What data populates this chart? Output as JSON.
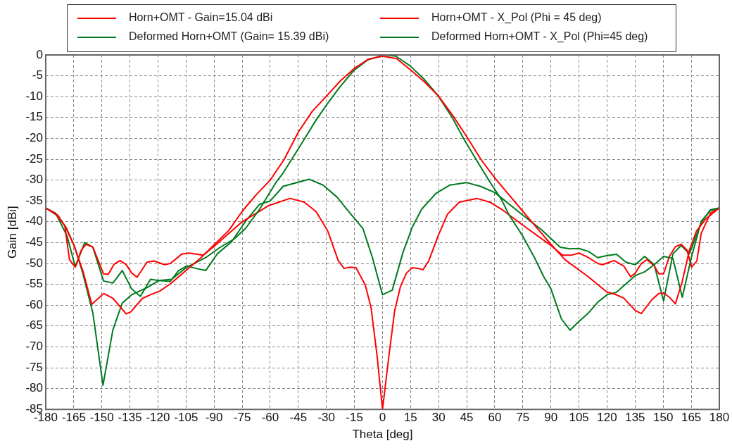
{
  "chart_data": {
    "type": "line",
    "xlabel": "Theta [deg]",
    "ylabel": "Gain [dBi]",
    "xlim": [
      -180,
      180
    ],
    "xticks": [
      -180,
      -165,
      -150,
      -135,
      -120,
      -105,
      -90,
      -75,
      -60,
      -45,
      -30,
      -15,
      0,
      15,
      30,
      45,
      60,
      75,
      90,
      105,
      120,
      135,
      150,
      165,
      180
    ],
    "ylim": [
      -85,
      0
    ],
    "yticks": [
      -85,
      -80,
      -75,
      -70,
      -65,
      -60,
      -55,
      -50,
      -45,
      -40,
      -35,
      -30,
      -25,
      -20,
      -15,
      -10,
      -5,
      0
    ],
    "grid": true,
    "legend": "top",
    "marker": "none",
    "line_style": "solid",
    "series": [
      {
        "name": "Horn+OMT - Gain=15.04 dBi",
        "color": "#ff0000",
        "x": [
          -180,
          -175,
          -170,
          -165,
          -160,
          -155.4,
          -149,
          -144,
          -137,
          -134.5,
          -128.4,
          -124,
          -119,
          -113.4,
          -105.8,
          -97,
          -90,
          -82,
          -75,
          -67.5,
          -60,
          -52.5,
          -45,
          -37.5,
          -30,
          -22.5,
          -15,
          -7.5,
          0,
          7.5,
          15,
          22.5,
          30,
          37.5,
          45,
          52.5,
          60,
          67.5,
          75,
          82.5,
          90,
          97.5,
          110,
          120,
          123.8,
          128.9,
          135.1,
          138.3,
          143.9,
          147.7,
          150.2,
          153.3,
          156.5,
          160.2,
          164,
          167.8,
          172.8,
          180
        ],
        "values": [
          -36.7,
          -38,
          -40.8,
          -45.5,
          -52,
          -59.8,
          -57.2,
          -58.4,
          -62.1,
          -61.6,
          -58.4,
          -57.5,
          -56.6,
          -54.9,
          -52,
          -48.6,
          -45.5,
          -42,
          -37.5,
          -33.5,
          -30,
          -25,
          -18.5,
          -13.5,
          -9.9,
          -6.2,
          -3.2,
          -1,
          -0.3,
          -0.9,
          -3.6,
          -6.5,
          -9.9,
          -14.5,
          -19.6,
          -25,
          -29.5,
          -33.5,
          -37.5,
          -41.5,
          -45.4,
          -49.1,
          -53.2,
          -56.9,
          -57.3,
          -58.3,
          -61.3,
          -62,
          -58.7,
          -57.2,
          -57.1,
          -58.1,
          -59.7,
          -54.3,
          -46.8,
          -42.2,
          -39.3,
          -36.7
        ]
      },
      {
        "name": "Deformed Horn+OMT (Gain= 15.39 dBi)",
        "color": "#007a1f",
        "x": [
          -180,
          -174.9,
          -169.2,
          -164.8,
          -160.4,
          -154.8,
          -149.4,
          -144.1,
          -139.1,
          -134.1,
          -125.9,
          -119.6,
          -112.7,
          -104.6,
          -94.5,
          -87,
          -79.5,
          -73.2,
          -65.7,
          -57,
          -53.1,
          -44.3,
          -35.5,
          -29.3,
          -23,
          -15.5,
          -8,
          0.8,
          7.1,
          14.7,
          22.2,
          29.7,
          37.2,
          43.5,
          49.8,
          57.3,
          63.6,
          67.4,
          74.9,
          81.2,
          86.2,
          90,
          95.6,
          100.2,
          105,
          110,
          115,
          120.1,
          125.1,
          130.1,
          135.1,
          140.1,
          145.2,
          150.2,
          155.2,
          160.2,
          165.2,
          170.3,
          175.3,
          180
        ],
        "values": [
          -36.7,
          -37.9,
          -41.3,
          -45.7,
          -52,
          -61.9,
          -79.2,
          -65.9,
          -59.5,
          -57.5,
          -55.8,
          -54.1,
          -53.8,
          -50.9,
          -48.6,
          -46.2,
          -44.2,
          -41.6,
          -37,
          -30.6,
          -28.3,
          -22,
          -15.6,
          -11.6,
          -7.8,
          -3.8,
          -1.2,
          0,
          -0.3,
          -2.6,
          -5.8,
          -9.8,
          -15,
          -20.2,
          -24.9,
          -30.4,
          -34.7,
          -38.2,
          -43.4,
          -48.6,
          -53.2,
          -56.1,
          -63.3,
          -66,
          -63.9,
          -61.9,
          -59.3,
          -57.5,
          -56.9,
          -54.9,
          -52.9,
          -52,
          -50.3,
          -48.3,
          -48.8,
          -58.1,
          -48.3,
          -39.9,
          -37.3,
          -36.7
        ]
      },
      {
        "name": "Horn+OMT - X_Pol (Phi = 45 deg)",
        "color": "#ff0000",
        "x": [
          -180,
          -173.6,
          -169.8,
          -167.3,
          -164.2,
          -161,
          -158.5,
          -154.8,
          -149.1,
          -146.6,
          -143.5,
          -140.3,
          -137.2,
          -134,
          -131.2,
          -125.9,
          -122.1,
          -116.5,
          -113.4,
          -107.1,
          -103.3,
          -95.8,
          -89.5,
          -75,
          -60.7,
          -49.4,
          -41.8,
          -35.5,
          -29.3,
          -23.6,
          -20.5,
          -17.4,
          -14.2,
          -9.2,
          -6.1,
          -2.9,
          0,
          3.4,
          6.5,
          9.6,
          12.8,
          15.9,
          19,
          21.6,
          24.7,
          29.7,
          34.7,
          41,
          50.4,
          57.3,
          63.6,
          74.9,
          90,
          96.2,
          101.2,
          105,
          110,
          115,
          117.6,
          123.8,
          128.9,
          132.6,
          135.1,
          138.3,
          141.4,
          145.2,
          147.7,
          150.2,
          153.3,
          156.5,
          159.6,
          162.7,
          165.2,
          168,
          170.3,
          175.3,
          180
        ],
        "values": [
          -36.7,
          -38.4,
          -41,
          -49.1,
          -50.9,
          -46.8,
          -45.4,
          -46.1,
          -52.5,
          -52.6,
          -50.2,
          -49.3,
          -50.2,
          -52.3,
          -53.3,
          -49.7,
          -49.4,
          -50.3,
          -50,
          -47.7,
          -47.5,
          -48,
          -45.7,
          -40,
          -36.1,
          -34.4,
          -35.3,
          -37.6,
          -42.2,
          -49.4,
          -51.2,
          -50.9,
          -51,
          -55.2,
          -60.7,
          -72.2,
          -85,
          -72.2,
          -61.3,
          -55.5,
          -52.3,
          -51,
          -51.2,
          -51.5,
          -49.4,
          -43.4,
          -38.2,
          -35.3,
          -34.4,
          -35.3,
          -37,
          -40.8,
          -45.7,
          -48,
          -48,
          -47.5,
          -48.6,
          -50,
          -50.3,
          -49.3,
          -50.6,
          -53.2,
          -52.3,
          -50,
          -49.1,
          -50.6,
          -52.5,
          -52.5,
          -48.3,
          -46,
          -45.4,
          -46.8,
          -50.9,
          -49.4,
          -42.8,
          -37.9,
          -36.7
        ]
      },
      {
        "name": "Deformed Horn+OMT - X_Pol (Phi=45 deg)",
        "color": "#007a1f",
        "x": [
          -180,
          -174.2,
          -168.6,
          -164.2,
          -159.2,
          -154.8,
          -149.1,
          -144.1,
          -139.1,
          -134.1,
          -129.4,
          -124,
          -119.6,
          -113.4,
          -109,
          -104.6,
          -99.6,
          -94.5,
          -88.3,
          -80.7,
          -73.2,
          -65.7,
          -60,
          -53.1,
          -39.3,
          -31.8,
          -24.3,
          -18,
          -10.5,
          -5.4,
          0,
          5.2,
          10.9,
          15.9,
          20.9,
          28.5,
          36,
          44.8,
          52.3,
          60,
          74.9,
          84.9,
          95,
          100,
          105,
          110,
          115,
          120.1,
          125.1,
          130.1,
          135.1,
          140.1,
          145.2,
          150.2,
          155.2,
          159.6,
          164,
          170.3,
          175.3,
          180
        ],
        "values": [
          -36.7,
          -38.4,
          -43.4,
          -50.8,
          -45,
          -46.1,
          -54.2,
          -54.7,
          -51.7,
          -56.1,
          -57.9,
          -53.8,
          -54.1,
          -54.3,
          -51.7,
          -50.6,
          -51.2,
          -51.7,
          -47.7,
          -44.8,
          -39.9,
          -35.8,
          -35,
          -31.5,
          -29.8,
          -31.2,
          -34.1,
          -37.6,
          -41.6,
          -48.6,
          -57.5,
          -56.4,
          -47.4,
          -41.3,
          -37,
          -33.2,
          -31.2,
          -30.6,
          -31.5,
          -33,
          -38.4,
          -41.9,
          -46.1,
          -46.5,
          -46.4,
          -47.1,
          -48.6,
          -48.1,
          -47.8,
          -49.7,
          -50.3,
          -48.3,
          -50.3,
          -59,
          -47.7,
          -45.7,
          -47.7,
          -40.2,
          -37.1,
          -36.7
        ]
      }
    ]
  }
}
